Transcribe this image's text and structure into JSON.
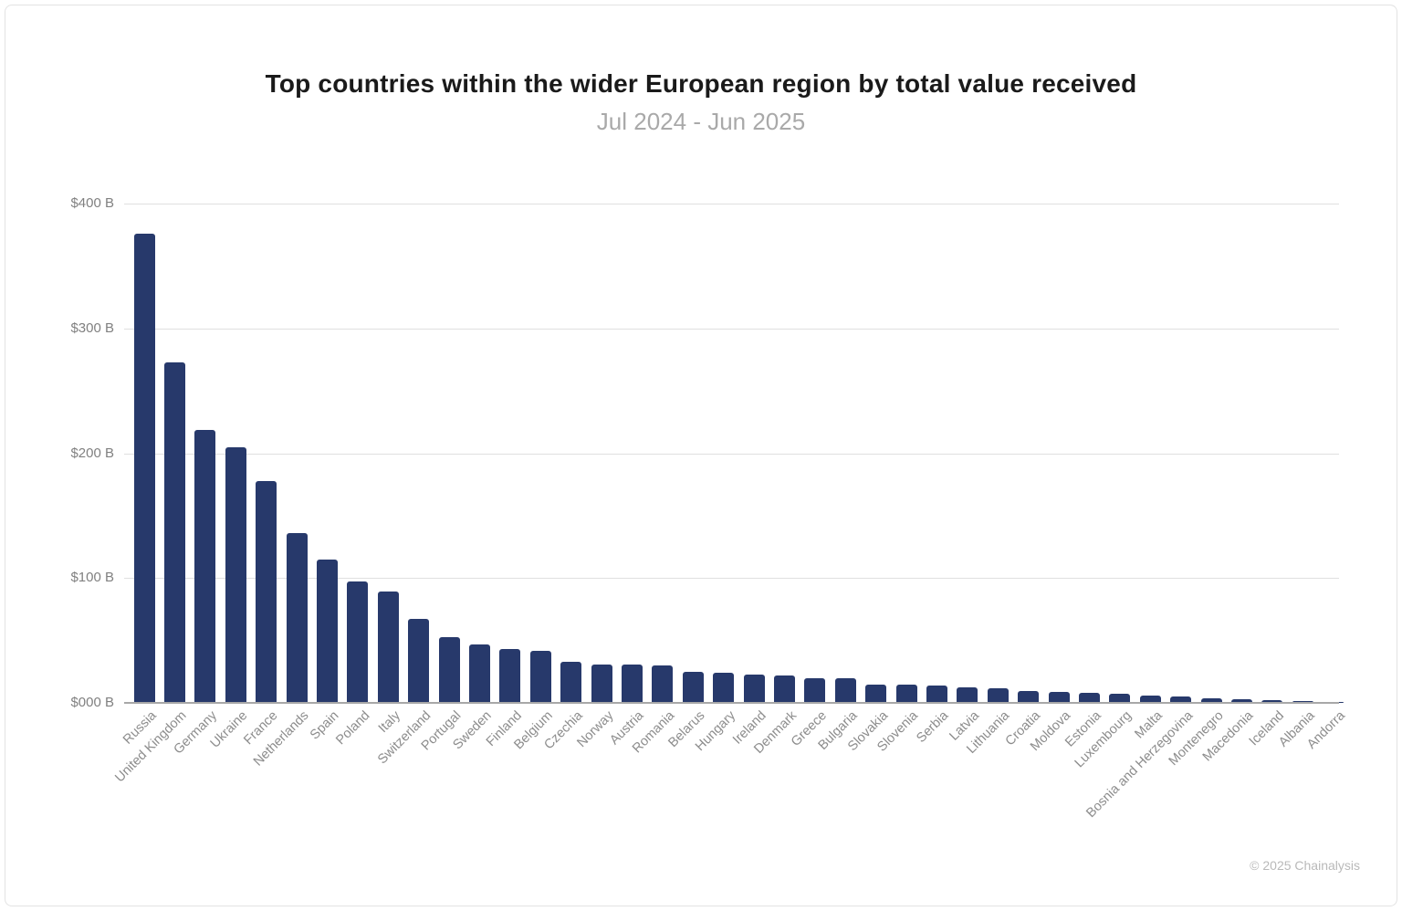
{
  "footer": {
    "copyright": "© 2025 Chainalysis"
  },
  "colors": {
    "bar": "#27396B",
    "gridline": "#e0e0e0",
    "axis_line": "#a8a8a8",
    "title_text": "#1a1a1a",
    "subtitle_text": "#a9a9a9",
    "tick_text": "#8c8c8c"
  },
  "chart_data": {
    "type": "bar",
    "title": "Top countries within the wider European region by total value received",
    "subtitle": "Jul 2024 - Jun 2025",
    "xlabel": "",
    "ylabel": "",
    "unit": "USD billions",
    "ylim": [
      0,
      400
    ],
    "grid": true,
    "legend": false,
    "ytick_labels": [
      "$000 B",
      "$100 B",
      "$200 B",
      "$300 B",
      "$400 B"
    ],
    "ytick_values": [
      0,
      100,
      200,
      300,
      400
    ],
    "categories": [
      "Russia",
      "United Kingdom",
      "Germany",
      "Ukraine",
      "France",
      "Netherlands",
      "Spain",
      "Poland",
      "Italy",
      "Switzerland",
      "Portugal",
      "Sweden",
      "Finland",
      "Belgium",
      "Czechia",
      "Norway",
      "Austria",
      "Romania",
      "Belarus",
      "Hungary",
      "Ireland",
      "Denmark",
      "Greece",
      "Bulgaria",
      "Slovakia",
      "Slovenia",
      "Serbia",
      "Latvia",
      "Lithuania",
      "Croatia",
      "Moldova",
      "Estonia",
      "Luxembourg",
      "Malta",
      "Bosnia and Herzegovina",
      "Montenegro",
      "Macedonia",
      "Iceland",
      "Albania",
      "Andorra"
    ],
    "values": [
      376,
      273,
      219,
      205,
      178,
      136,
      115,
      97,
      89,
      67,
      53,
      47,
      43,
      42,
      33,
      31,
      30.5,
      30,
      25,
      24.5,
      23,
      22,
      20,
      20,
      15,
      14.5,
      14,
      12.5,
      12,
      9.5,
      9,
      8,
      7,
      5.5,
      5,
      4,
      3,
      2.5,
      1.5,
      0.5
    ]
  }
}
